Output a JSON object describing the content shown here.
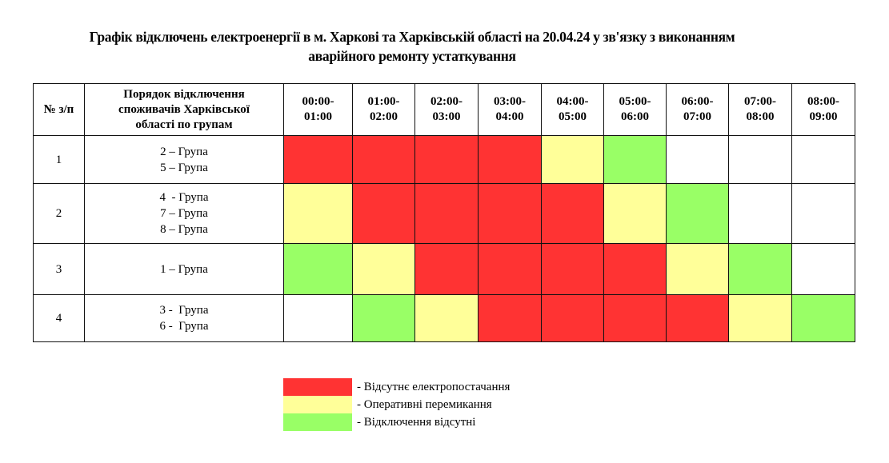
{
  "title": {
    "line1": "Графік відключень електроенергії в м. Харкові та Харківській області на 20.04.24 у зв'язку з виконанням",
    "line2": "аварійного ремонту устаткування"
  },
  "colors": {
    "red": "#ff3333",
    "yellow": "#ffff99",
    "green": "#99ff66",
    "white": "#ffffff"
  },
  "table": {
    "headers": {
      "num": "№ з/п",
      "groups": "Порядок відключення споживачів Харківської області по групам",
      "slots": [
        {
          "l1": "00:00-",
          "l2": "01:00"
        },
        {
          "l1": "01:00-",
          "l2": "02:00"
        },
        {
          "l1": "02:00-",
          "l2": "03:00"
        },
        {
          "l1": "03:00-",
          "l2": "04:00"
        },
        {
          "l1": "04:00-",
          "l2": "05:00"
        },
        {
          "l1": "05:00-",
          "l2": "06:00"
        },
        {
          "l1": "06:00-",
          "l2": "07:00"
        },
        {
          "l1": "07:00-",
          "l2": "08:00"
        },
        {
          "l1": "08:00-",
          "l2": "09:00"
        }
      ]
    },
    "rows": [
      {
        "num": "1",
        "groups": [
          "2 – Група",
          "5 – Група"
        ],
        "cells": [
          "red",
          "red",
          "red",
          "red",
          "yellow",
          "green",
          "white",
          "white",
          "white"
        ]
      },
      {
        "num": "2",
        "groups": [
          "4  - Група",
          "7 – Група",
          "8 – Група"
        ],
        "cells": [
          "yellow",
          "red",
          "red",
          "red",
          "red",
          "yellow",
          "green",
          "white",
          "white"
        ]
      },
      {
        "num": "3",
        "groups": [
          "1 – Група"
        ],
        "cells": [
          "green",
          "yellow",
          "red",
          "red",
          "red",
          "red",
          "yellow",
          "green",
          "white"
        ]
      },
      {
        "num": "4",
        "groups": [
          "3 -  Група",
          "6 -  Група"
        ],
        "cells": [
          "white",
          "green",
          "yellow",
          "red",
          "red",
          "red",
          "red",
          "yellow",
          "green"
        ]
      }
    ]
  },
  "legend": [
    {
      "color": "red",
      "label": "- Відсутнє електропостачання"
    },
    {
      "color": "yellow",
      "label": "- Оперативні перемикання"
    },
    {
      "color": "green",
      "label": "- Відключення відсутні"
    }
  ]
}
